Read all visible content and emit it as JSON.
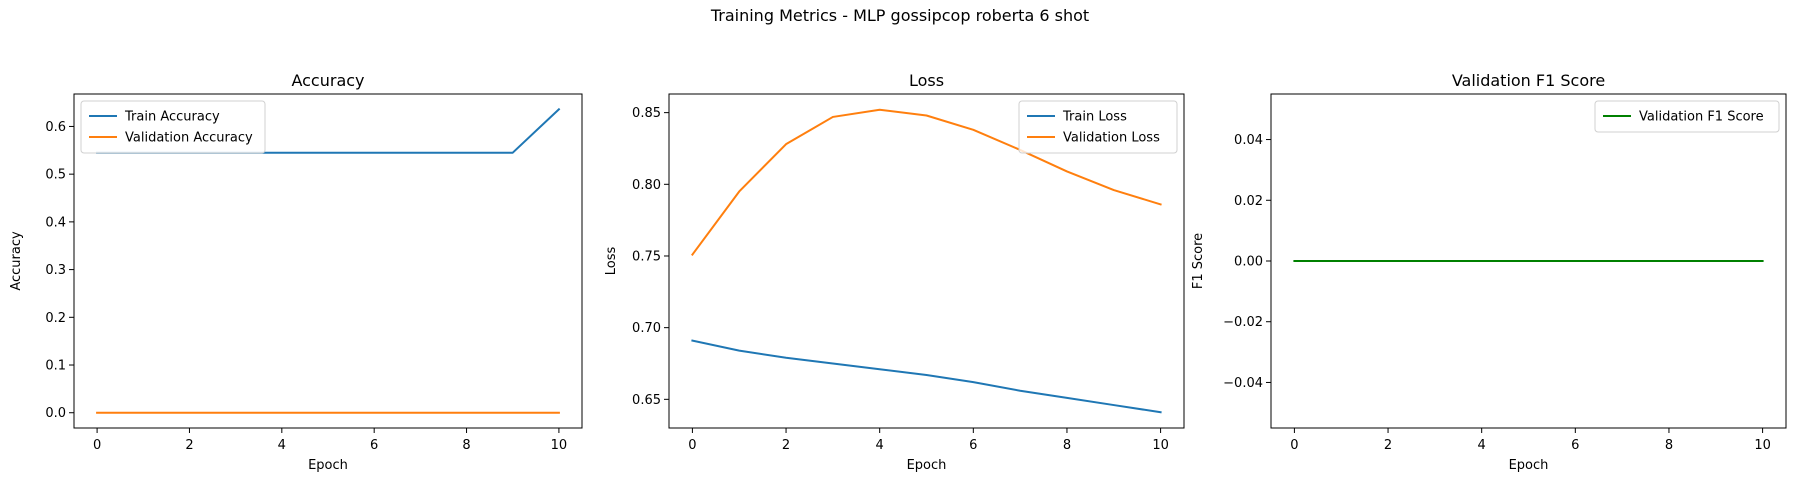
{
  "title": "Training Metrics - MLP gossipcop roberta 6 shot",
  "colors": {
    "train": "#1f77b4",
    "validation": "#ff7f0e",
    "f1": "#008000"
  },
  "chart_data": [
    {
      "type": "line",
      "title": "Accuracy",
      "xlabel": "Epoch",
      "ylabel": "Accuracy",
      "xlim": [
        -0.5,
        10.5
      ],
      "ylim": [
        -0.032,
        0.668
      ],
      "xticks": [
        0,
        2,
        4,
        6,
        8,
        10
      ],
      "yticks": [
        0.0,
        0.1,
        0.2,
        0.3,
        0.4,
        0.5,
        0.6
      ],
      "ytick_labels": [
        "0.0",
        "0.1",
        "0.2",
        "0.3",
        "0.4",
        "0.5",
        "0.6"
      ],
      "legend": "top-left",
      "x": [
        0,
        1,
        2,
        3,
        4,
        5,
        6,
        7,
        8,
        9,
        10
      ],
      "series": [
        {
          "name": "Train Accuracy",
          "color": "#1f77b4",
          "values": [
            0.545,
            0.545,
            0.545,
            0.545,
            0.545,
            0.545,
            0.545,
            0.545,
            0.545,
            0.545,
            0.636
          ]
        },
        {
          "name": "Validation Accuracy",
          "color": "#ff7f0e",
          "values": [
            0,
            0,
            0,
            0,
            0,
            0,
            0,
            0,
            0,
            0,
            0
          ]
        }
      ]
    },
    {
      "type": "line",
      "title": "Loss",
      "xlabel": "Epoch",
      "ylabel": "Loss",
      "xlim": [
        -0.5,
        10.5
      ],
      "ylim": [
        0.63,
        0.863
      ],
      "xticks": [
        0,
        2,
        4,
        6,
        8,
        10
      ],
      "yticks": [
        0.65,
        0.7,
        0.75,
        0.8,
        0.85
      ],
      "ytick_labels": [
        "0.65",
        "0.70",
        "0.75",
        "0.80",
        "0.85"
      ],
      "legend": "top-right",
      "x": [
        0,
        1,
        2,
        3,
        4,
        5,
        6,
        7,
        8,
        9,
        10
      ],
      "series": [
        {
          "name": "Train Loss",
          "color": "#1f77b4",
          "values": [
            0.691,
            0.684,
            0.679,
            0.675,
            0.671,
            0.667,
            0.662,
            0.656,
            0.651,
            0.646,
            0.641
          ]
        },
        {
          "name": "Validation Loss",
          "color": "#ff7f0e",
          "values": [
            0.751,
            0.795,
            0.828,
            0.847,
            0.852,
            0.848,
            0.838,
            0.824,
            0.809,
            0.796,
            0.786
          ]
        }
      ]
    },
    {
      "type": "line",
      "title": "Validation F1 Score",
      "xlabel": "Epoch",
      "ylabel": "F1 Score",
      "xlim": [
        -0.5,
        10.5
      ],
      "ylim": [
        -0.055,
        0.055
      ],
      "xticks": [
        0,
        2,
        4,
        6,
        8,
        10
      ],
      "yticks": [
        -0.04,
        -0.02,
        0.0,
        0.02,
        0.04
      ],
      "ytick_labels": [
        "−0.04",
        "−0.02",
        "0.00",
        "0.02",
        "0.04"
      ],
      "legend": "top-right",
      "x": [
        0,
        1,
        2,
        3,
        4,
        5,
        6,
        7,
        8,
        9,
        10
      ],
      "series": [
        {
          "name": "Validation F1 Score",
          "color": "#008000",
          "values": [
            0,
            0,
            0,
            0,
            0,
            0,
            0,
            0,
            0,
            0,
            0
          ]
        }
      ]
    }
  ]
}
